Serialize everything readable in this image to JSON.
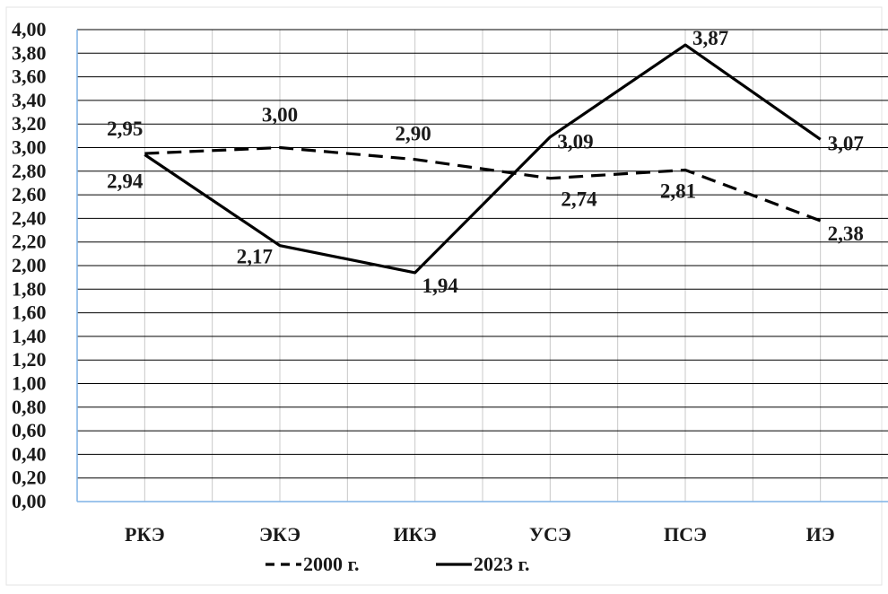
{
  "chart_data": {
    "type": "line",
    "categories": [
      "РКЭ",
      "ЭКЭ",
      "ИКЭ",
      "УСЭ",
      "ПСЭ",
      "ИЭ"
    ],
    "ylim": [
      0,
      4
    ],
    "yticks": [
      "0,00",
      "0,20",
      "0,40",
      "0,60",
      "0,80",
      "1,00",
      "1,20",
      "1,40",
      "1,60",
      "1,80",
      "2,00",
      "2,20",
      "2,40",
      "2,60",
      "2,80",
      "3,00",
      "3,20",
      "3,40",
      "3,60",
      "3,80",
      "4,00"
    ],
    "grid": true,
    "legend_position": "bottom",
    "series": [
      {
        "name": "2000 г.",
        "style": "dashed",
        "color": "#000000",
        "values": [
          2.95,
          3.0,
          2.9,
          2.74,
          2.81,
          2.38
        ],
        "labels": [
          "2,95",
          "3,00",
          "2,90",
          "2,74",
          "2,81",
          "2,38"
        ]
      },
      {
        "name": "2023 г.",
        "style": "solid",
        "color": "#000000",
        "values": [
          2.94,
          2.17,
          1.94,
          3.09,
          3.87,
          3.07
        ],
        "labels": [
          "2,94",
          "2,17",
          "1,94",
          "3,09",
          "3,87",
          "3,07"
        ]
      }
    ]
  },
  "colors": {
    "grid_horizontal": "#000000",
    "grid_vertical": "#c8c8c8",
    "axis_frame": "#7fb2e5",
    "line": "#000000"
  }
}
